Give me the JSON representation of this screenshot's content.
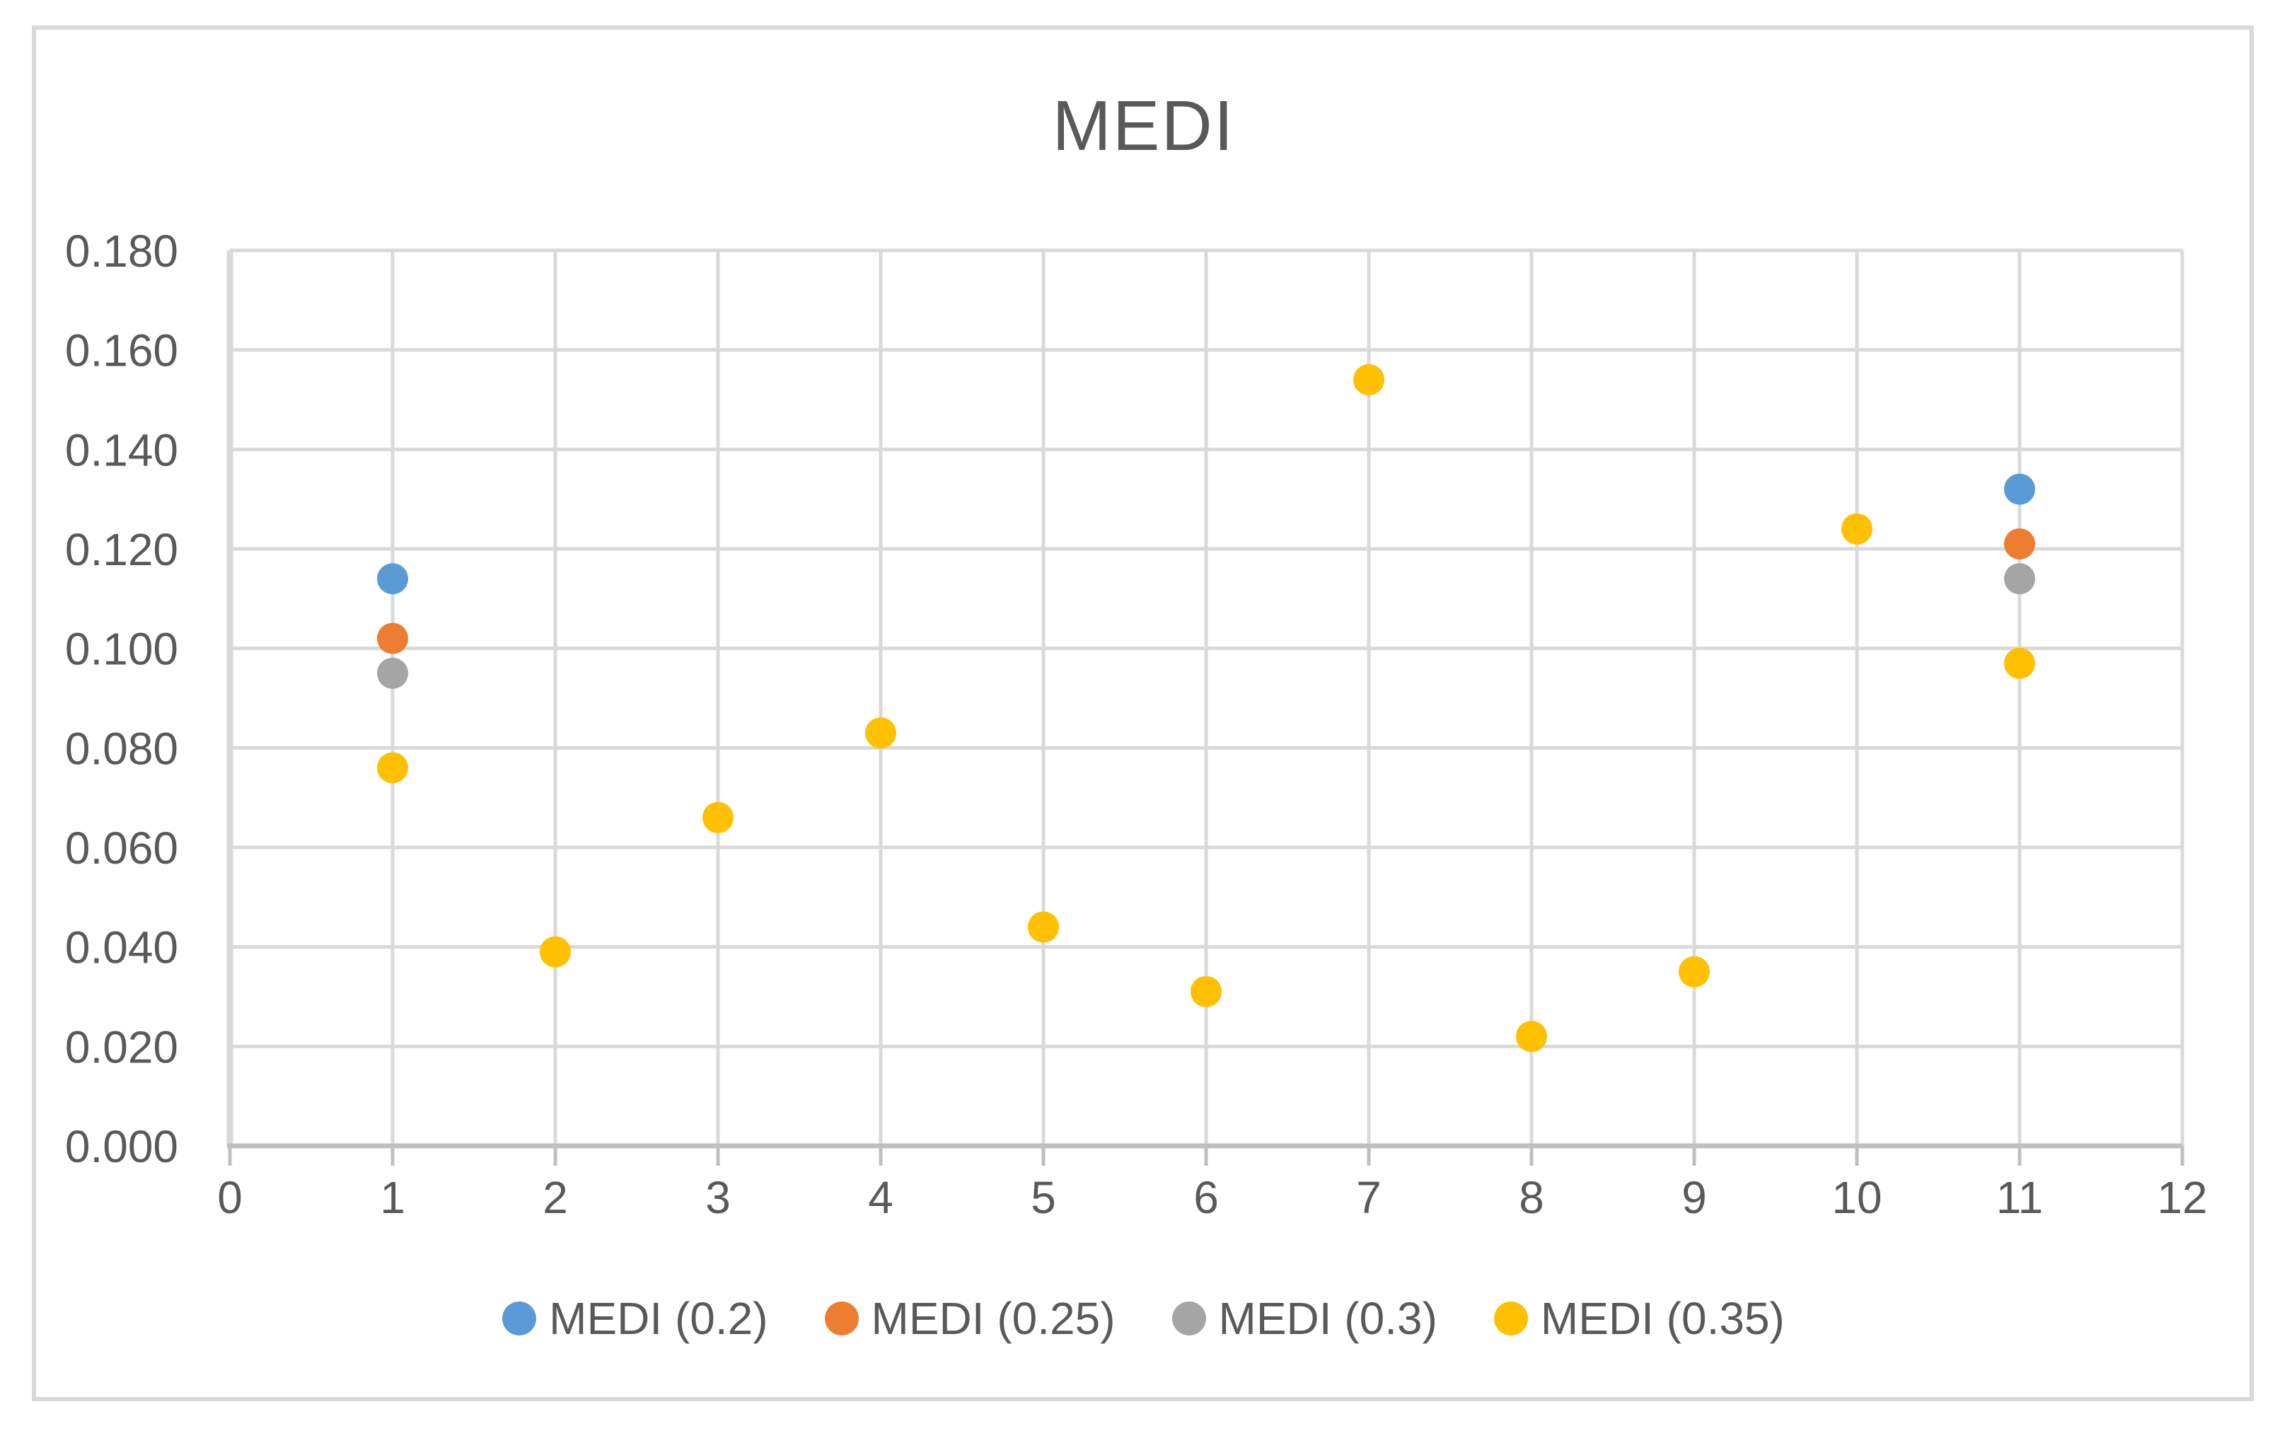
{
  "title": "MEDI",
  "palette": {
    "text": "#595959",
    "gridline": "#D9D9D9",
    "axis_line": "#BFBFBF",
    "y_axis_line": "#D9D9D9",
    "border": "#D9D9D9",
    "background": "#FFFFFF"
  },
  "chart_data": {
    "type": "scatter",
    "title": "MEDI",
    "xlabel": "",
    "ylabel": "",
    "xlim": [
      0,
      12
    ],
    "ylim": [
      0,
      0.18
    ],
    "grid": true,
    "legend_position": "bottom",
    "x_tick_labels": [
      "0",
      "1",
      "2",
      "3",
      "4",
      "5",
      "6",
      "7",
      "8",
      "9",
      "10",
      "11",
      "12"
    ],
    "y_tick_labels": [
      "0.000",
      "0.020",
      "0.040",
      "0.060",
      "0.080",
      "0.100",
      "0.120",
      "0.140",
      "0.160",
      "0.180"
    ],
    "series": [
      {
        "name": "MEDI (0.2)",
        "color": "#5B9BD5",
        "points": [
          {
            "x": 1,
            "y": 0.114
          },
          {
            "x": 11,
            "y": 0.132
          }
        ]
      },
      {
        "name": "MEDI (0.25)",
        "color": "#ED7D31",
        "points": [
          {
            "x": 1,
            "y": 0.102
          },
          {
            "x": 11,
            "y": 0.121
          }
        ]
      },
      {
        "name": "MEDI (0.3)",
        "color": "#A5A5A5",
        "points": [
          {
            "x": 1,
            "y": 0.095
          },
          {
            "x": 11,
            "y": 0.114
          }
        ]
      },
      {
        "name": "MEDI (0.35)",
        "color": "#FFC000",
        "points": [
          {
            "x": 1,
            "y": 0.076
          },
          {
            "x": 2,
            "y": 0.039
          },
          {
            "x": 3,
            "y": 0.066
          },
          {
            "x": 4,
            "y": 0.083
          },
          {
            "x": 5,
            "y": 0.044
          },
          {
            "x": 6,
            "y": 0.031
          },
          {
            "x": 7,
            "y": 0.154
          },
          {
            "x": 8,
            "y": 0.022
          },
          {
            "x": 9,
            "y": 0.035
          },
          {
            "x": 10,
            "y": 0.124
          },
          {
            "x": 11,
            "y": 0.097
          }
        ]
      }
    ]
  }
}
